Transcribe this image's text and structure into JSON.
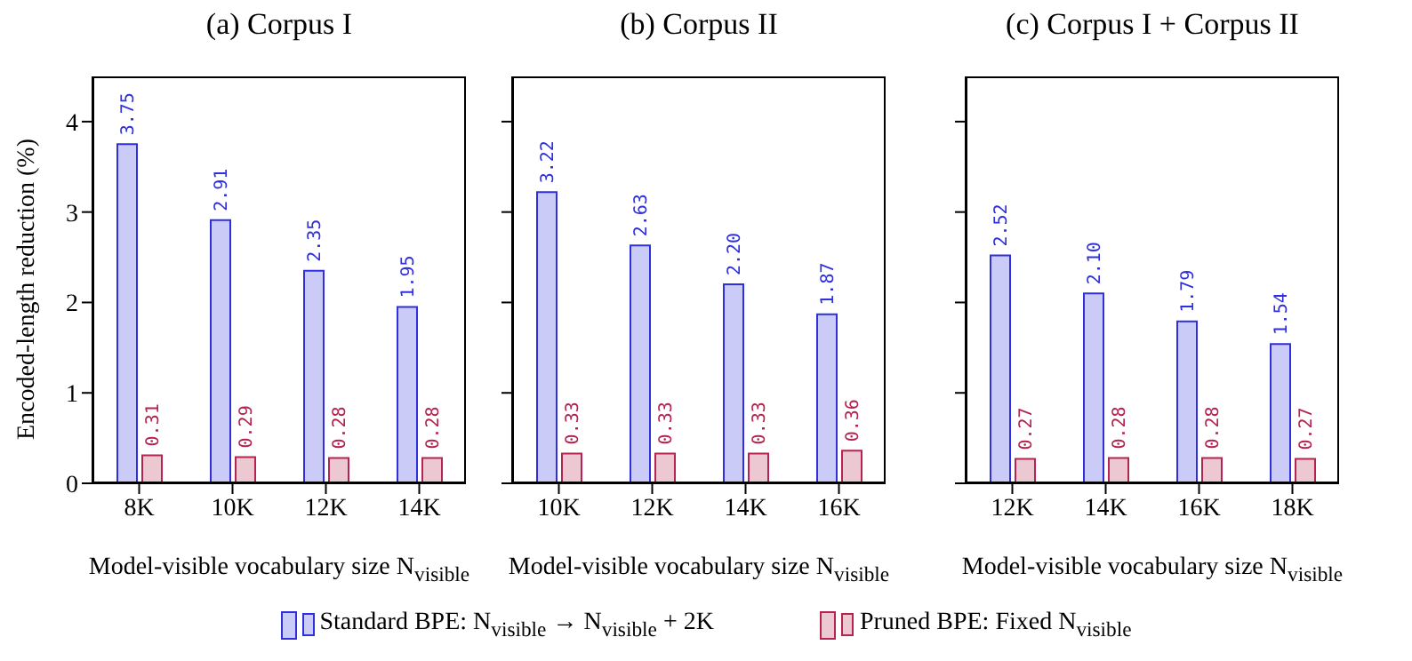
{
  "chart_data": [
    {
      "type": "bar",
      "title": "(a) Corpus I",
      "xlabel": "Model-visible vocabulary size N$_{visible}$",
      "ylabel": "Encoded-length reduction (%)",
      "categories": [
        "8K",
        "10K",
        "12K",
        "14K"
      ],
      "series": [
        {
          "name": "Standard BPE: N$_{visible}$ → N$_{visible}$ + 2K",
          "color": "#2f2fe0",
          "values": [
            3.75,
            2.91,
            2.35,
            1.95
          ],
          "value_labels": [
            "3.75",
            "2.91",
            "2.35",
            "1.95"
          ]
        },
        {
          "name": "Pruned BPE: Fixed N$_{visible}$",
          "color": "#b5234f",
          "values": [
            0.31,
            0.29,
            0.28,
            0.28
          ],
          "value_labels": [
            "0.31",
            "0.29",
            "0.28",
            "0.28"
          ]
        }
      ],
      "ylim": [
        0,
        4.5
      ],
      "yticks": [
        0,
        1,
        2,
        3,
        4
      ],
      "legend": "bottom"
    },
    {
      "type": "bar",
      "title": "(b) Corpus II",
      "xlabel": "Model-visible vocabulary size N$_{visible}$",
      "categories": [
        "10K",
        "12K",
        "14K",
        "16K"
      ],
      "series": [
        {
          "color": "#2f2fe0",
          "values": [
            3.22,
            2.63,
            2.2,
            1.87
          ],
          "value_labels": [
            "3.22",
            "2.63",
            "2.20",
            "1.87"
          ]
        },
        {
          "color": "#b5234f",
          "values": [
            0.33,
            0.33,
            0.33,
            0.36
          ],
          "value_labels": [
            "0.33",
            "0.33",
            "0.33",
            "0.36"
          ]
        }
      ],
      "ylim": [
        0,
        4.5
      ],
      "yticks": [
        0,
        1,
        2,
        3,
        4
      ],
      "tick_labels": "x"
    },
    {
      "type": "bar",
      "title": "(c) Corpus I + Corpus II",
      "xlabel": "Model-visible vocabulary size N$_{visible}$",
      "categories": [
        "12K",
        "14K",
        "16K",
        "18K"
      ],
      "series": [
        {
          "color": "#2f2fe0",
          "values": [
            2.52,
            2.1,
            1.79,
            1.54
          ],
          "value_labels": [
            "2.52",
            "2.10",
            "1.79",
            "1.54"
          ]
        },
        {
          "color": "#b5234f",
          "values": [
            0.27,
            0.28,
            0.28,
            0.27
          ],
          "value_labels": [
            "0.27",
            "0.28",
            "0.28",
            "0.27"
          ]
        }
      ],
      "ylim": [
        0,
        4.5
      ],
      "yticks": [
        0,
        1,
        2,
        3,
        4
      ],
      "tick_labels": "x"
    }
  ]
}
